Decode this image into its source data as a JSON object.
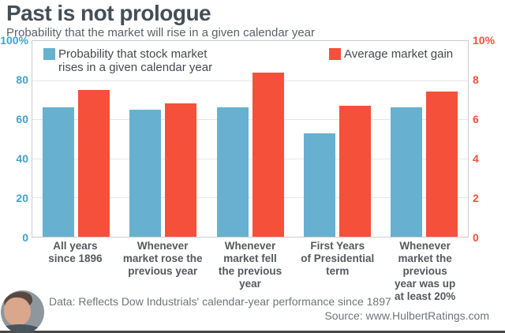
{
  "title": "Past is not prologue",
  "subtitle": "Probability that the market will rise in a given calendar year",
  "legend": {
    "series1_line1": "Probability that stock market",
    "series1_line2": "rises in a given calendar year",
    "series2": "Average market gain"
  },
  "footer": {
    "data_note": "Data: Reflects Dow Industrials' calendar-year performance since 1897",
    "source": "Source: www.HulbertRatings.com"
  },
  "colors": {
    "bar_blue": "#68b0cf",
    "bar_red": "#f4503a",
    "axis_blue": "#3fa3ca",
    "axis_red": "#f4503c",
    "title_text": "#444e57",
    "body_text": "#55585c",
    "grid": "#e4e6e7",
    "plot_border": "#c8cbcd",
    "footer_text": "#6e7479",
    "bottom_rule": "#474747"
  },
  "chart_data": {
    "type": "bar",
    "title": "Past is not prologue",
    "subtitle": "Probability that the market will rise in a given calendar year",
    "categories": [
      "All years since 1896",
      "Whenever market rose the previous year",
      "Whenever market fell the previous year",
      "First Years of Presidential term",
      "Whenever market the previous year was up at least 20%"
    ],
    "categories_lines": [
      [
        "All years",
        "since 1896"
      ],
      [
        "Whenever",
        "market rose the",
        "previous year"
      ],
      [
        "Whenever",
        "market fell",
        "the previous",
        "year"
      ],
      [
        "First Years",
        "of Presidential",
        "term"
      ],
      [
        "Whenever",
        "market the",
        "previous",
        "year was up",
        "at least 20%"
      ]
    ],
    "series": [
      {
        "name": "Probability that stock market rises in a given calendar year",
        "axis": "left",
        "color": "#68b0cf",
        "unit": "%",
        "values": [
          66,
          65,
          66,
          53,
          66
        ]
      },
      {
        "name": "Average market gain",
        "axis": "right",
        "color": "#f4503a",
        "unit": "%",
        "values": [
          7.5,
          6.8,
          8.4,
          6.7,
          7.4
        ]
      }
    ],
    "left_axis": {
      "min": 0,
      "max": 100,
      "ticks": [
        "100%",
        "80",
        "60",
        "40",
        "20",
        "0"
      ]
    },
    "right_axis": {
      "min": 0,
      "max": 10,
      "ticks": [
        "10%",
        "8",
        "6",
        "4",
        "2",
        "0"
      ]
    },
    "grid": true,
    "legend_position": "top-inside",
    "source": "www.HulbertRatings.com"
  }
}
